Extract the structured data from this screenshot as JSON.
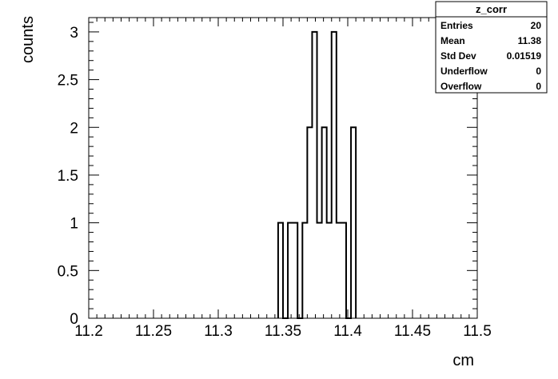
{
  "chart_data": {
    "type": "histogram",
    "xlabel": "cm",
    "ylabel": "counts",
    "xlim": [
      11.2,
      11.5
    ],
    "ylim": [
      0,
      3.15
    ],
    "bin_width": 0.00375,
    "bins": [
      {
        "x_low": 11.34625,
        "count": 1
      },
      {
        "x_low": 11.35,
        "count": 0
      },
      {
        "x_low": 11.35375,
        "count": 1
      },
      {
        "x_low": 11.3575,
        "count": 1
      },
      {
        "x_low": 11.36125,
        "count": 0
      },
      {
        "x_low": 11.365,
        "count": 1
      },
      {
        "x_low": 11.36875,
        "count": 2
      },
      {
        "x_low": 11.3725,
        "count": 3
      },
      {
        "x_low": 11.37625,
        "count": 1
      },
      {
        "x_low": 11.38,
        "count": 2
      },
      {
        "x_low": 11.38375,
        "count": 1
      },
      {
        "x_low": 11.3875,
        "count": 3
      },
      {
        "x_low": 11.39125,
        "count": 1
      },
      {
        "x_low": 11.395,
        "count": 1
      },
      {
        "x_low": 11.39875,
        "count": 0
      },
      {
        "x_low": 11.4025,
        "count": 2
      }
    ],
    "x_ticks": [
      {
        "value": 11.2,
        "label": "11.2"
      },
      {
        "value": 11.25,
        "label": "11.25"
      },
      {
        "value": 11.3,
        "label": "11.3"
      },
      {
        "value": 11.35,
        "label": "11.35"
      },
      {
        "value": 11.4,
        "label": "11.4"
      },
      {
        "value": 11.45,
        "label": "11.45"
      },
      {
        "value": 11.5,
        "label": "11.5"
      }
    ],
    "y_ticks": [
      {
        "value": 0,
        "label": "0"
      },
      {
        "value": 0.5,
        "label": "0.5"
      },
      {
        "value": 1,
        "label": "1"
      },
      {
        "value": 1.5,
        "label": "1.5"
      },
      {
        "value": 2,
        "label": "2"
      },
      {
        "value": 2.5,
        "label": "2.5"
      },
      {
        "value": 3,
        "label": "3"
      }
    ],
    "grid": false,
    "stats_box": {
      "title": "z_corr",
      "position": "top-right",
      "rows": [
        {
          "label": "Entries",
          "value": "20"
        },
        {
          "label": "Mean",
          "value": "11.38"
        },
        {
          "label": "Std Dev",
          "value": "0.01519"
        },
        {
          "label": "Underflow",
          "value": "0"
        },
        {
          "label": "Overflow",
          "value": "0"
        }
      ]
    }
  }
}
